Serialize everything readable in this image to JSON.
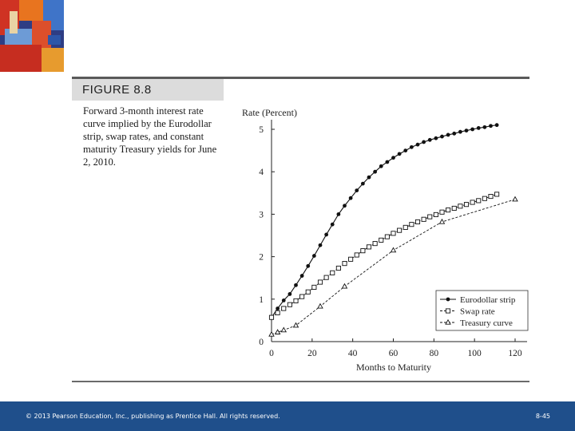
{
  "figure": {
    "label": "FIGURE 8.8",
    "caption": "Forward 3-month interest rate curve implied by the Eurodollar strip, swap rates, and constant maturity Treasury yields for June 2, 2010."
  },
  "footer": {
    "copyright": "© 2013 Pearson Education, Inc., publishing as Prentice Hall.  All rights reserved.",
    "page": "8-45"
  },
  "colors": {
    "footer_bg": "#1f4f8b",
    "series": "#111111"
  },
  "chart_data": {
    "type": "line",
    "xlabel": "Months to Maturity",
    "ylabel": "Rate (Percent)",
    "xlim": [
      0,
      120
    ],
    "ylim": [
      0,
      5
    ],
    "xticks": [
      0,
      20,
      40,
      60,
      80,
      100,
      120
    ],
    "yticks": [
      0,
      1,
      2,
      3,
      4,
      5
    ],
    "grid": false,
    "legend_position": "bottom-right",
    "series": [
      {
        "name": "Eurodollar strip",
        "marker": "filled-circle",
        "line": "solid",
        "x": [
          0,
          3,
          6,
          9,
          12,
          15,
          18,
          21,
          24,
          27,
          30,
          33,
          36,
          39,
          42,
          45,
          48,
          51,
          54,
          57,
          60,
          63,
          66,
          69,
          72,
          75,
          78,
          81,
          84,
          87,
          90,
          93,
          96,
          99,
          102,
          105,
          108,
          111
        ],
        "y": [
          0.57,
          0.78,
          0.97,
          1.12,
          1.33,
          1.55,
          1.78,
          2.02,
          2.27,
          2.52,
          2.76,
          3.0,
          3.2,
          3.38,
          3.56,
          3.72,
          3.87,
          4.0,
          4.13,
          4.23,
          4.33,
          4.42,
          4.5,
          4.58,
          4.64,
          4.7,
          4.75,
          4.79,
          4.83,
          4.87,
          4.9,
          4.94,
          4.97,
          5.0,
          5.03,
          5.05,
          5.08,
          5.1
        ]
      },
      {
        "name": "Swap rate",
        "marker": "open-square",
        "line": "dashed",
        "x": [
          0,
          3,
          6,
          9,
          12,
          15,
          18,
          21,
          24,
          27,
          30,
          33,
          36,
          39,
          42,
          45,
          48,
          51,
          54,
          57,
          60,
          63,
          66,
          69,
          72,
          75,
          78,
          81,
          84,
          87,
          90,
          93,
          96,
          99,
          102,
          105,
          108,
          111
        ],
        "y": [
          0.57,
          0.68,
          0.78,
          0.87,
          0.96,
          1.06,
          1.17,
          1.28,
          1.4,
          1.51,
          1.62,
          1.73,
          1.84,
          1.94,
          2.04,
          2.14,
          2.23,
          2.31,
          2.39,
          2.47,
          2.55,
          2.62,
          2.69,
          2.76,
          2.82,
          2.88,
          2.94,
          2.99,
          3.05,
          3.1,
          3.14,
          3.19,
          3.23,
          3.28,
          3.32,
          3.37,
          3.42,
          3.47
        ]
      },
      {
        "name": "Treasury curve",
        "marker": "open-triangle",
        "line": "dashed",
        "x": [
          0,
          3,
          6,
          12,
          24,
          36,
          60,
          84,
          120
        ],
        "y": [
          0.17,
          0.22,
          0.27,
          0.38,
          0.83,
          1.3,
          2.15,
          2.82,
          3.35
        ]
      }
    ]
  }
}
